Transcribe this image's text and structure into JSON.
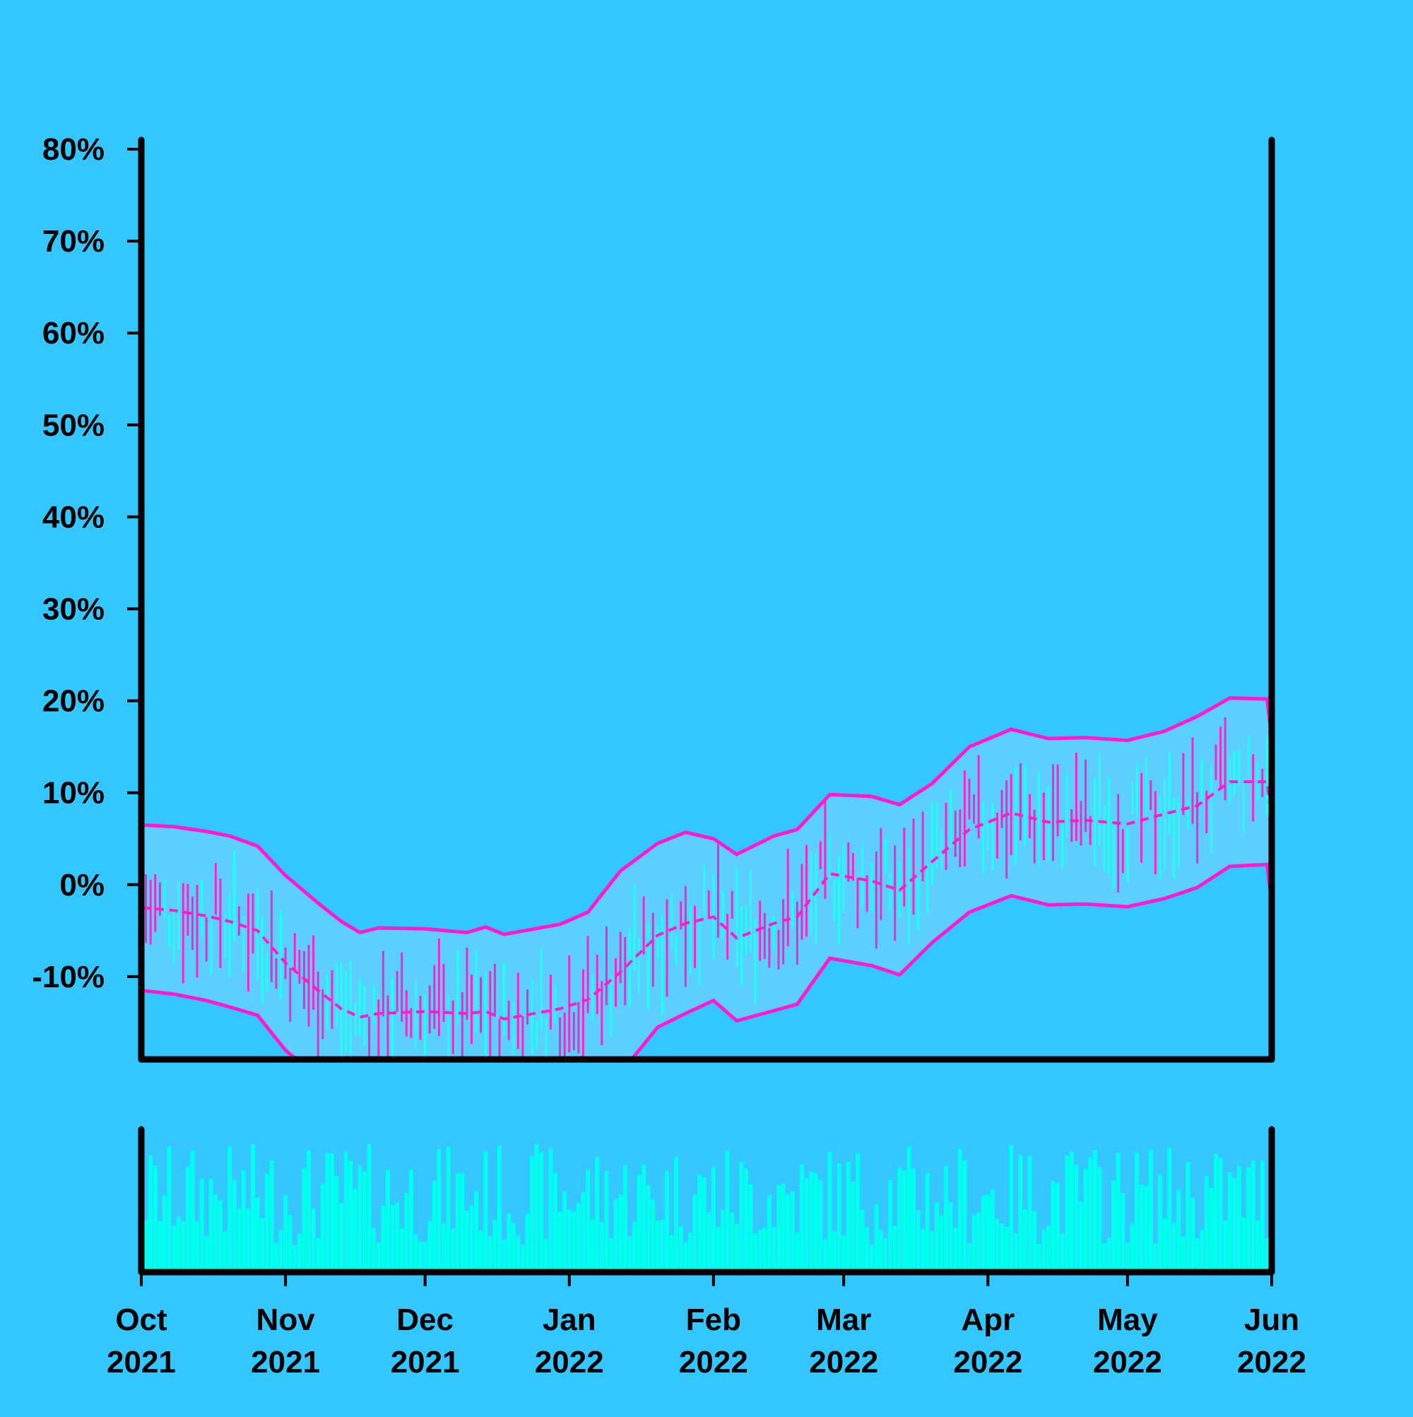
{
  "colors": {
    "background": "#33c6ff",
    "band_fill": "#5ccfff",
    "band_line": "#ff1ad0",
    "candle_up": "#1ffff2",
    "candle_down": "#ee2ac8",
    "volume": "#00ffee",
    "axis": "#000000"
  },
  "chart_data": {
    "type": "line",
    "title": "",
    "xlabel": "",
    "ylabel": "",
    "ylim": [
      -19,
      81
    ],
    "yticks": [
      -10,
      0,
      10,
      20,
      30,
      40,
      50,
      60,
      70,
      80
    ],
    "ytick_labels": [
      "-10%",
      "0%",
      "10%",
      "20%",
      "30%",
      "40%",
      "50%",
      "60%",
      "70%",
      "80%"
    ],
    "xlim": [
      "2021-10-01",
      "2022-06-01"
    ],
    "xtick_labels": [
      {
        "date": "2021-10-01",
        "month": "Oct",
        "year": "2021"
      },
      {
        "date": "2021-11-01",
        "month": "Nov",
        "year": "2021"
      },
      {
        "date": "2021-12-01",
        "month": "Dec",
        "year": "2021"
      },
      {
        "date": "2022-01-01",
        "month": "Jan",
        "year": "2022"
      },
      {
        "date": "2022-02-01",
        "month": "Feb",
        "year": "2022"
      },
      {
        "date": "2022-03-01",
        "month": "Mar",
        "year": "2022"
      },
      {
        "date": "2022-04-01",
        "month": "Apr",
        "year": "2022"
      },
      {
        "date": "2022-05-01",
        "month": "May",
        "year": "2022"
      },
      {
        "date": "2022-06-01",
        "month": "Jun",
        "year": "2022"
      }
    ],
    "grid": false,
    "legend": "none",
    "bollinger": {
      "upper": [
        [
          "2021-10-01",
          6.5
        ],
        [
          "2021-10-08",
          6.3
        ],
        [
          "2021-10-15",
          5.8
        ],
        [
          "2021-10-20",
          5.3
        ],
        [
          "2021-10-26",
          4.2
        ],
        [
          "2021-11-01",
          1.0
        ],
        [
          "2021-11-08",
          -2.0
        ],
        [
          "2021-11-13",
          -4.0
        ],
        [
          "2021-11-17",
          -5.2
        ],
        [
          "2021-11-21",
          -4.7
        ],
        [
          "2021-12-01",
          -4.8
        ],
        [
          "2021-12-10",
          -5.2
        ],
        [
          "2021-12-14",
          -4.6
        ],
        [
          "2021-12-18",
          -5.4
        ],
        [
          "2021-12-30",
          -4.3
        ],
        [
          "2022-01-05",
          -3.0
        ],
        [
          "2022-01-12",
          1.5
        ],
        [
          "2022-01-20",
          4.5
        ],
        [
          "2022-01-26",
          5.7
        ],
        [
          "2022-02-01",
          5.0
        ],
        [
          "2022-02-06",
          3.3
        ],
        [
          "2022-02-14",
          5.3
        ],
        [
          "2022-02-19",
          6.0
        ],
        [
          "2022-02-26",
          9.8
        ],
        [
          "2022-03-07",
          9.6
        ],
        [
          "2022-03-13",
          8.7
        ],
        [
          "2022-03-20",
          11.0
        ],
        [
          "2022-03-28",
          15.0
        ],
        [
          "2022-04-06",
          16.9
        ],
        [
          "2022-04-14",
          15.9
        ],
        [
          "2022-04-22",
          16.0
        ],
        [
          "2022-05-01",
          15.7
        ],
        [
          "2022-05-09",
          16.7
        ],
        [
          "2022-05-16",
          18.3
        ],
        [
          "2022-05-23",
          20.3
        ],
        [
          "2022-05-31",
          20.2
        ],
        [
          "2022-06-06",
          20.5
        ],
        [
          "2022-06-13",
          19.2
        ],
        [
          "2022-06-20",
          18.0
        ],
        [
          "2022-06-27",
          17.0
        ],
        [
          "2022-06-01",
          16.0
        ]
      ],
      "middle": [
        [
          "2021-10-01",
          -2.5
        ],
        [
          "2021-10-08",
          -2.8
        ],
        [
          "2021-10-15",
          -3.4
        ],
        [
          "2021-10-20",
          -4.0
        ],
        [
          "2021-10-26",
          -5.0
        ],
        [
          "2021-11-01",
          -8.5
        ],
        [
          "2021-11-08",
          -11.5
        ],
        [
          "2021-11-13",
          -13.5
        ],
        [
          "2021-11-17",
          -14.4
        ],
        [
          "2021-11-21",
          -14.0
        ],
        [
          "2021-12-01",
          -13.8
        ],
        [
          "2021-12-10",
          -14.0
        ],
        [
          "2021-12-14",
          -13.8
        ],
        [
          "2021-12-18",
          -14.6
        ],
        [
          "2021-12-30",
          -13.5
        ],
        [
          "2022-01-05",
          -12.5
        ],
        [
          "2022-01-12",
          -9.5
        ],
        [
          "2022-01-20",
          -5.5
        ],
        [
          "2022-01-26",
          -4.2
        ],
        [
          "2022-02-01",
          -3.5
        ],
        [
          "2022-02-06",
          -5.8
        ],
        [
          "2022-02-14",
          -4.2
        ],
        [
          "2022-02-19",
          -3.5
        ],
        [
          "2022-02-26",
          1.2
        ],
        [
          "2022-03-07",
          0.4
        ],
        [
          "2022-03-13",
          -0.6
        ],
        [
          "2022-03-20",
          2.5
        ],
        [
          "2022-03-28",
          6.0
        ],
        [
          "2022-04-06",
          7.8
        ],
        [
          "2022-04-14",
          6.8
        ],
        [
          "2022-04-22",
          7.0
        ],
        [
          "2022-05-01",
          6.6
        ],
        [
          "2022-05-09",
          7.7
        ],
        [
          "2022-05-16",
          8.6
        ],
        [
          "2022-05-23",
          11.2
        ],
        [
          "2022-05-31",
          11.2
        ],
        [
          "2022-06-06",
          11.5
        ],
        [
          "2022-06-13",
          10.0
        ],
        [
          "2022-06-20",
          8.8
        ],
        [
          "2022-06-27",
          8.0
        ],
        [
          "2022-06-01",
          7.0
        ]
      ],
      "lower": [
        [
          "2021-10-01",
          -11.5
        ],
        [
          "2021-10-08",
          -11.9
        ],
        [
          "2021-10-15",
          -12.6
        ],
        [
          "2021-10-20",
          -13.3
        ],
        [
          "2021-10-26",
          -14.2
        ],
        [
          "2021-11-01",
          -18.0
        ],
        [
          "2021-11-08",
          -21.0
        ],
        [
          "2021-11-13",
          -23.0
        ],
        [
          "2021-11-17",
          -23.6
        ],
        [
          "2021-11-21",
          -23.3
        ],
        [
          "2021-12-01",
          -22.8
        ],
        [
          "2021-12-10",
          -22.8
        ],
        [
          "2021-12-14",
          -23.0
        ],
        [
          "2021-12-18",
          -23.8
        ],
        [
          "2021-12-30",
          -22.7
        ],
        [
          "2022-01-05",
          -22.0
        ],
        [
          "2022-01-12",
          -20.5
        ],
        [
          "2022-01-20",
          -15.5
        ],
        [
          "2022-01-26",
          -14.0
        ],
        [
          "2022-02-01",
          -12.6
        ],
        [
          "2022-02-06",
          -14.8
        ],
        [
          "2022-02-14",
          -13.7
        ],
        [
          "2022-02-19",
          -13.0
        ],
        [
          "2022-02-26",
          -8.0
        ],
        [
          "2022-03-07",
          -8.8
        ],
        [
          "2022-03-13",
          -9.8
        ],
        [
          "2022-03-20",
          -6.3
        ],
        [
          "2022-03-28",
          -3.0
        ],
        [
          "2022-04-06",
          -1.2
        ],
        [
          "2022-04-14",
          -2.2
        ],
        [
          "2022-04-22",
          -2.1
        ],
        [
          "2022-05-01",
          -2.4
        ],
        [
          "2022-05-09",
          -1.5
        ],
        [
          "2022-05-16",
          -0.3
        ],
        [
          "2022-05-23",
          2.0
        ],
        [
          "2022-05-31",
          2.2
        ],
        [
          "2022-06-06",
          2.6
        ],
        [
          "2022-06-13",
          1.3
        ],
        [
          "2022-06-20",
          -0.4
        ],
        [
          "2022-06-27",
          -1.0
        ],
        [
          "2022-06-01",
          -2.0
        ]
      ]
    },
    "candles_note_reference_levels": [
      -2.5,
      -13.8,
      -5.5,
      1.0,
      7.0,
      11.2,
      7.0
    ],
    "volume_panel": {
      "ylim": [
        0,
        1
      ]
    }
  }
}
